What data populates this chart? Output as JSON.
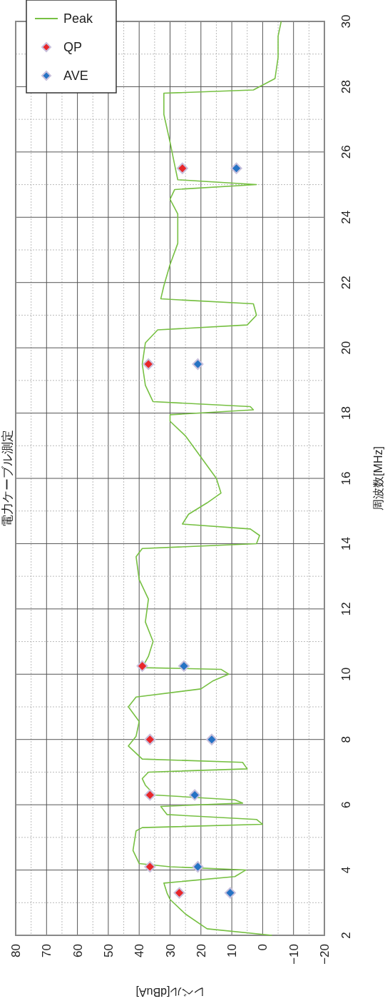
{
  "chart_data": {
    "type": "line",
    "title": "電力ケーブル測定",
    "xlabel": "レベル[dBuA]",
    "ylabel": "周波数[MHz]",
    "xlim": [
      80,
      -20
    ],
    "ylim": [
      2,
      30
    ],
    "xticks": [
      80,
      70,
      60,
      50,
      40,
      30,
      20,
      10,
      0,
      -10,
      -20
    ],
    "yticks": [
      2,
      4,
      6,
      8,
      10,
      12,
      14,
      16,
      18,
      20,
      22,
      24,
      26,
      28,
      30
    ],
    "grid": true,
    "legend": "top left",
    "series": [
      {
        "name": "Peak",
        "type": "line",
        "color": "#77c043",
        "marker": "none",
        "values": [
          2.0,
          2.2,
          2.65,
          3.1,
          3.3,
          3.6,
          3.8,
          4.0,
          4.1,
          4.2,
          4.6,
          5.2,
          5.3,
          5.4,
          5.55,
          5.7,
          5.95,
          6.05,
          6.15,
          6.3,
          6.6,
          6.8,
          7.0,
          7.1,
          7.3,
          7.4,
          7.8,
          8.1,
          8.55,
          9.0,
          9.3,
          9.55,
          9.8,
          10.0,
          10.15,
          10.2,
          10.55,
          11.0,
          11.6,
          12.3,
          12.9,
          13.6,
          13.85,
          14.0,
          14.25,
          14.45,
          14.6,
          14.9,
          15.25,
          15.55,
          16.0,
          16.65,
          17.3,
          17.75,
          17.95,
          18.1,
          18.2,
          18.35,
          18.85,
          19.5,
          20.15,
          20.55,
          20.7,
          21.0,
          21.35,
          21.5,
          21.9,
          22.55,
          23.2,
          24.1,
          24.55,
          24.85,
          25.0,
          25.15,
          25.6,
          26.3,
          27.15,
          27.8,
          27.9,
          28.25,
          28.9,
          29.55,
          30.0
        ],
        "x": [
          -3,
          18,
          25,
          30,
          31,
          32,
          9,
          5.5,
          30,
          40,
          42,
          41,
          39,
          0,
          2,
          31,
          33,
          6.5,
          9,
          35,
          38,
          39,
          37,
          5,
          6.5,
          39,
          43.5,
          41,
          40,
          43.5,
          41,
          20,
          16,
          11,
          13.5,
          39,
          37,
          35.5,
          38,
          37,
          40,
          41,
          39,
          2,
          1,
          4,
          26,
          24,
          18,
          13.5,
          15,
          20,
          25,
          30,
          30,
          3,
          4,
          35.5,
          38,
          39,
          38,
          34,
          5,
          2,
          3,
          33,
          32,
          30,
          27.5,
          27.5,
          30,
          28.5,
          2,
          27.5,
          28.5,
          30,
          32,
          32,
          3,
          -4,
          -5,
          -5,
          -6
        ]
      },
      {
        "name": "QP",
        "type": "scatter",
        "color": "#e8262a",
        "marker": "diamond",
        "values": [
          3.3,
          4.1,
          6.3,
          8.0,
          10.25,
          19.5,
          25.5
        ],
        "x": [
          27,
          36.5,
          36.5,
          36.5,
          39,
          37,
          26
        ]
      },
      {
        "name": "AVE",
        "type": "scatter",
        "color": "#2673c4",
        "marker": "diamond",
        "values": [
          3.3,
          4.1,
          6.3,
          8.0,
          10.25,
          19.5,
          25.5
        ],
        "x": [
          10.5,
          21,
          22,
          16.5,
          25.5,
          21,
          8.5
        ]
      }
    ]
  }
}
